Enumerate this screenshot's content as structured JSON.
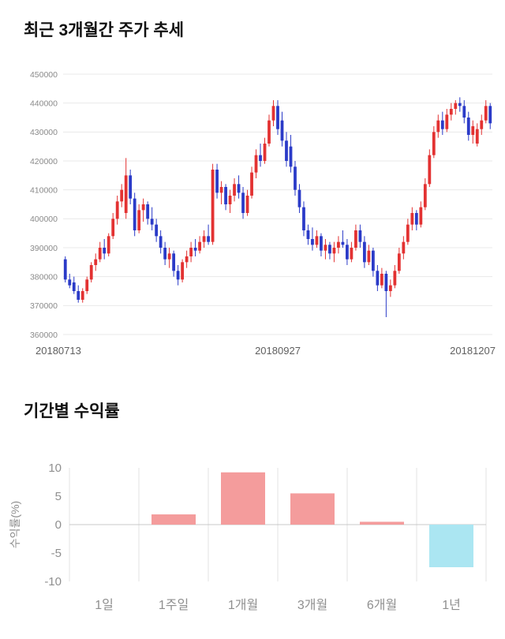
{
  "price_section": {
    "title": "최근 3개월간 주가 추세"
  },
  "returns_section": {
    "title": "기간별 수익률"
  },
  "chart_data": [
    {
      "type": "candlestick",
      "title": "최근 3개월간 주가 추세",
      "ylim": [
        360000,
        450000
      ],
      "ytick_step": 10000,
      "yticks": [
        360000,
        370000,
        380000,
        390000,
        400000,
        410000,
        420000,
        430000,
        440000,
        450000
      ],
      "xtick_labels": [
        "20180713",
        "20180927",
        "20181207"
      ],
      "up_color": "#e33232",
      "down_color": "#2b3bc8",
      "grid_color": "#e9e9e9",
      "candles_format": "[open, high, low, close] in KRW",
      "candles": [
        [
          386000,
          387000,
          378000,
          379000
        ],
        [
          379000,
          381000,
          376000,
          377000
        ],
        [
          378000,
          380000,
          374000,
          375000
        ],
        [
          375000,
          377000,
          371000,
          372000
        ],
        [
          372000,
          376000,
          371000,
          375000
        ],
        [
          375000,
          380000,
          374000,
          379000
        ],
        [
          379000,
          385000,
          378000,
          384000
        ],
        [
          384000,
          388000,
          382000,
          386000
        ],
        [
          386000,
          392000,
          385000,
          390000
        ],
        [
          390000,
          393000,
          386000,
          388000
        ],
        [
          388000,
          395000,
          387000,
          394000
        ],
        [
          394000,
          402000,
          393000,
          400000
        ],
        [
          400000,
          408000,
          398000,
          406000
        ],
        [
          406000,
          412000,
          404000,
          410000
        ],
        [
          402000,
          421000,
          400000,
          415000
        ],
        [
          415000,
          417000,
          405000,
          407000
        ],
        [
          407000,
          409000,
          394000,
          396000
        ],
        [
          396000,
          405000,
          395000,
          403000
        ],
        [
          403000,
          407000,
          399000,
          405000
        ],
        [
          405000,
          406000,
          398000,
          400000
        ],
        [
          400000,
          404000,
          396000,
          398000
        ],
        [
          398000,
          400000,
          392000,
          394000
        ],
        [
          394000,
          396000,
          388000,
          390000
        ],
        [
          390000,
          392000,
          384000,
          386000
        ],
        [
          386000,
          390000,
          383000,
          388000
        ],
        [
          388000,
          389000,
          380000,
          382000
        ],
        [
          382000,
          384000,
          377000,
          379000
        ],
        [
          379000,
          386000,
          378000,
          385000
        ],
        [
          385000,
          389000,
          383000,
          387000
        ],
        [
          387000,
          392000,
          385000,
          390000
        ],
        [
          390000,
          393000,
          387000,
          389000
        ],
        [
          389000,
          394000,
          388000,
          392000
        ],
        [
          392000,
          396000,
          390000,
          394000
        ],
        [
          394000,
          398000,
          391000,
          392000
        ],
        [
          392000,
          419000,
          391000,
          417000
        ],
        [
          417000,
          419000,
          407000,
          409000
        ],
        [
          409000,
          413000,
          405000,
          411000
        ],
        [
          411000,
          412000,
          403000,
          405000
        ],
        [
          405000,
          410000,
          402000,
          408000
        ],
        [
          408000,
          414000,
          406000,
          412000
        ],
        [
          412000,
          415000,
          407000,
          409000
        ],
        [
          409000,
          411000,
          400000,
          402000
        ],
        [
          402000,
          410000,
          401000,
          408000
        ],
        [
          408000,
          418000,
          407000,
          416000
        ],
        [
          416000,
          424000,
          414000,
          422000
        ],
        [
          422000,
          426000,
          418000,
          420000
        ],
        [
          420000,
          428000,
          419000,
          426000
        ],
        [
          426000,
          436000,
          425000,
          434000
        ],
        [
          434000,
          441000,
          432000,
          439000
        ],
        [
          439000,
          441000,
          429000,
          431000
        ],
        [
          434000,
          437000,
          425000,
          427000
        ],
        [
          427000,
          430000,
          418000,
          420000
        ],
        [
          425000,
          429000,
          416000,
          418000
        ],
        [
          418000,
          420000,
          408000,
          410000
        ],
        [
          410000,
          412000,
          402000,
          404000
        ],
        [
          404000,
          406000,
          394000,
          396000
        ],
        [
          396000,
          398000,
          391000,
          393000
        ],
        [
          393000,
          397000,
          389000,
          391000
        ],
        [
          391000,
          396000,
          390000,
          394000
        ],
        [
          394000,
          395000,
          387000,
          389000
        ],
        [
          389000,
          393000,
          386000,
          391000
        ],
        [
          391000,
          392000,
          386000,
          388000
        ],
        [
          388000,
          392000,
          385000,
          390000
        ],
        [
          390000,
          394000,
          388000,
          392000
        ],
        [
          392000,
          396000,
          390000,
          391000
        ],
        [
          391000,
          393000,
          384000,
          386000
        ],
        [
          386000,
          392000,
          385000,
          390000
        ],
        [
          390000,
          398000,
          389000,
          396000
        ],
        [
          396000,
          398000,
          390000,
          392000
        ],
        [
          392000,
          394000,
          383000,
          385000
        ],
        [
          385000,
          391000,
          384000,
          389000
        ],
        [
          389000,
          390000,
          380000,
          382000
        ],
        [
          382000,
          384000,
          375000,
          377000
        ],
        [
          377000,
          383000,
          376000,
          381000
        ],
        [
          381000,
          382000,
          366000,
          375000
        ],
        [
          375000,
          379000,
          373000,
          377000
        ],
        [
          377000,
          384000,
          376000,
          382000
        ],
        [
          382000,
          390000,
          381000,
          388000
        ],
        [
          388000,
          394000,
          386000,
          392000
        ],
        [
          392000,
          400000,
          391000,
          398000
        ],
        [
          398000,
          404000,
          396000,
          402000
        ],
        [
          402000,
          403000,
          396000,
          398000
        ],
        [
          398000,
          406000,
          397000,
          404000
        ],
        [
          404000,
          414000,
          403000,
          412000
        ],
        [
          412000,
          424000,
          411000,
          422000
        ],
        [
          422000,
          432000,
          421000,
          430000
        ],
        [
          430000,
          436000,
          428000,
          434000
        ],
        [
          434000,
          437000,
          429000,
          431000
        ],
        [
          431000,
          438000,
          430000,
          436000
        ],
        [
          436000,
          440000,
          434000,
          438000
        ],
        [
          438000,
          441000,
          436000,
          440000
        ],
        [
          440000,
          442000,
          437000,
          439000
        ],
        [
          439000,
          441000,
          433000,
          435000
        ],
        [
          435000,
          437000,
          427000,
          429000
        ],
        [
          429000,
          434000,
          426000,
          432000
        ],
        [
          426000,
          433000,
          425000,
          431000
        ],
        [
          431000,
          436000,
          429000,
          434000
        ],
        [
          434000,
          441000,
          433000,
          439000
        ],
        [
          439000,
          440000,
          431000,
          433000
        ]
      ]
    },
    {
      "type": "bar",
      "title": "기간별 수익률",
      "categories": [
        "1일",
        "1주일",
        "1개월",
        "3개월",
        "6개월",
        "1년"
      ],
      "values": [
        0,
        1.8,
        9.2,
        5.5,
        0.5,
        -7.5
      ],
      "ylabel": "수익률(%)",
      "ylim": [
        -10,
        10
      ],
      "yticks": [
        10,
        5,
        0,
        -5,
        -10
      ],
      "bar_colors": [
        "#f49c9c",
        "#f49c9c",
        "#f49c9c",
        "#f49c9c",
        "#f49c9c",
        "#abe6f2"
      ],
      "grid_color": "#e3e3e3",
      "zero_line_color": "#c8c8c8",
      "legend": "none",
      "grid": "vertical"
    }
  ]
}
